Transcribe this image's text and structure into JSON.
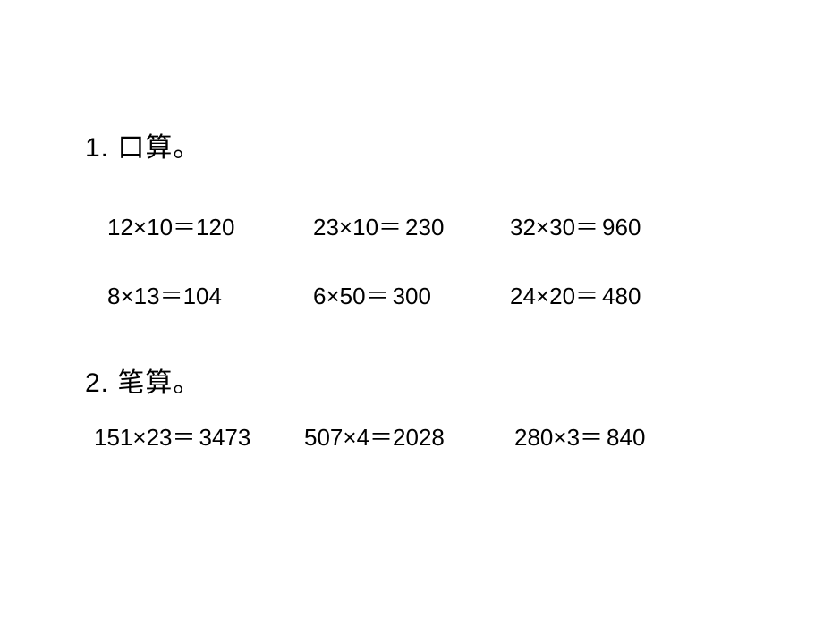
{
  "section1": {
    "title": "1. 口算。",
    "equations": [
      {
        "expr": "12×10＝",
        "answer": "120"
      },
      {
        "expr": "23×10＝",
        "answer": "230"
      },
      {
        "expr": "32×30＝",
        "answer": "960"
      },
      {
        "expr": "8×13＝",
        "answer": "104"
      },
      {
        "expr": "6×50＝",
        "answer": "300"
      },
      {
        "expr": "24×20＝",
        "answer": "480"
      }
    ]
  },
  "section2": {
    "title": "2. 笔算。",
    "equations": [
      {
        "expr": "151×23＝",
        "answer": "3473"
      },
      {
        "expr": "507×4＝",
        "answer": "2028"
      },
      {
        "expr": "280×3＝",
        "answer": "840"
      }
    ]
  },
  "colors": {
    "background": "#ffffff",
    "text": "#000000"
  },
  "fontsize": {
    "title": 30,
    "equation": 26
  }
}
